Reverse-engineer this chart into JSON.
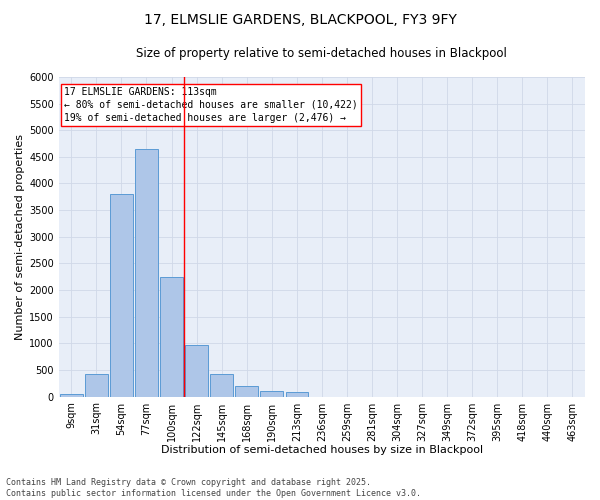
{
  "title_line1": "17, ELMSLIE GARDENS, BLACKPOOL, FY3 9FY",
  "title_line2": "Size of property relative to semi-detached houses in Blackpool",
  "xlabel": "Distribution of semi-detached houses by size in Blackpool",
  "ylabel": "Number of semi-detached properties",
  "categories": [
    "9sqm",
    "31sqm",
    "54sqm",
    "77sqm",
    "100sqm",
    "122sqm",
    "145sqm",
    "168sqm",
    "190sqm",
    "213sqm",
    "236sqm",
    "259sqm",
    "281sqm",
    "304sqm",
    "327sqm",
    "349sqm",
    "372sqm",
    "395sqm",
    "418sqm",
    "440sqm",
    "463sqm"
  ],
  "values": [
    50,
    430,
    3800,
    4650,
    2250,
    975,
    420,
    200,
    100,
    90,
    0,
    0,
    0,
    0,
    0,
    0,
    0,
    0,
    0,
    0,
    0
  ],
  "bar_color": "#aec6e8",
  "bar_edge_color": "#5b9bd5",
  "grid_color": "#d0d8e8",
  "background_color": "#e8eef8",
  "vline_color": "red",
  "vline_pos": 4.5,
  "annotation_text": "17 ELMSLIE GARDENS: 113sqm\n← 80% of semi-detached houses are smaller (10,422)\n19% of semi-detached houses are larger (2,476) →",
  "annotation_box_color": "white",
  "annotation_box_edge": "red",
  "ylim": [
    0,
    6000
  ],
  "yticks": [
    0,
    500,
    1000,
    1500,
    2000,
    2500,
    3000,
    3500,
    4000,
    4500,
    5000,
    5500,
    6000
  ],
  "footer_text": "Contains HM Land Registry data © Crown copyright and database right 2025.\nContains public sector information licensed under the Open Government Licence v3.0.",
  "title_fontsize": 10,
  "subtitle_fontsize": 8.5,
  "axis_label_fontsize": 8,
  "tick_fontsize": 7,
  "annotation_fontsize": 7,
  "footer_fontsize": 6
}
